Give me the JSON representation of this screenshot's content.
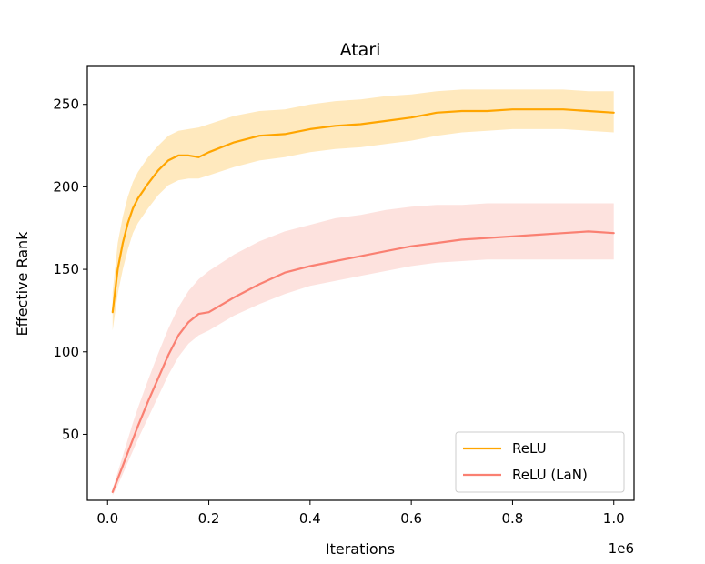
{
  "chart_data": {
    "type": "line",
    "title": "Atari",
    "xlabel": "Iterations",
    "ylabel": "Effective Rank",
    "x_offset_label": "1e6",
    "xlim": [
      -0.04,
      1.04
    ],
    "ylim": [
      10,
      273
    ],
    "x_ticks": [
      0.0,
      0.2,
      0.4,
      0.6,
      0.8,
      1.0
    ],
    "x_tick_labels": [
      "0.0",
      "0.2",
      "0.4",
      "0.6",
      "0.8",
      "1.0"
    ],
    "y_ticks": [
      50,
      100,
      150,
      200,
      250
    ],
    "y_tick_labels": [
      "50",
      "100",
      "150",
      "200",
      "250"
    ],
    "legend_position": "lower-right",
    "x": [
      0.01,
      0.02,
      0.03,
      0.04,
      0.05,
      0.06,
      0.08,
      0.1,
      0.12,
      0.14,
      0.16,
      0.18,
      0.2,
      0.25,
      0.3,
      0.35,
      0.4,
      0.45,
      0.5,
      0.55,
      0.6,
      0.65,
      0.7,
      0.75,
      0.8,
      0.85,
      0.9,
      0.95,
      1.0
    ],
    "series": [
      {
        "name": "ReLU",
        "color": "#ffa500",
        "band_color": "#ffe5b3",
        "values": [
          124,
          150,
          166,
          178,
          187,
          193,
          202,
          210,
          216,
          219,
          219,
          218,
          221,
          227,
          231,
          232,
          235,
          237,
          238,
          240,
          242,
          245,
          246,
          246,
          247,
          247,
          247,
          246,
          245
        ],
        "upper": [
          136,
          166,
          182,
          194,
          203,
          209,
          218,
          225,
          231,
          234,
          235,
          236,
          238,
          243,
          246,
          247,
          250,
          252,
          253,
          255,
          256,
          258,
          259,
          259,
          259,
          259,
          259,
          258,
          258
        ],
        "lower": [
          113,
          135,
          150,
          162,
          172,
          178,
          187,
          195,
          201,
          204,
          205,
          205,
          207,
          212,
          216,
          218,
          221,
          223,
          224,
          226,
          228,
          231,
          233,
          234,
          235,
          235,
          235,
          234,
          233
        ]
      },
      {
        "name": "ReLU (LaN)",
        "color": "#fa8072",
        "band_color": "#fdddd8",
        "values": [
          15,
          23,
          31,
          39,
          47,
          55,
          70,
          84,
          98,
          110,
          118,
          123,
          124,
          133,
          141,
          148,
          152,
          155,
          158,
          161,
          164,
          166,
          168,
          169,
          170,
          171,
          172,
          173,
          172
        ],
        "upper": [
          17,
          27,
          37,
          47,
          57,
          66,
          83,
          99,
          114,
          127,
          137,
          144,
          149,
          159,
          167,
          173,
          177,
          181,
          183,
          186,
          188,
          189,
          189,
          190,
          190,
          190,
          190,
          190,
          190
        ],
        "lower": [
          13,
          19,
          26,
          33,
          40,
          47,
          60,
          73,
          86,
          97,
          105,
          110,
          113,
          122,
          129,
          135,
          140,
          143,
          146,
          149,
          152,
          154,
          155,
          156,
          156,
          156,
          156,
          156,
          156
        ]
      }
    ]
  }
}
